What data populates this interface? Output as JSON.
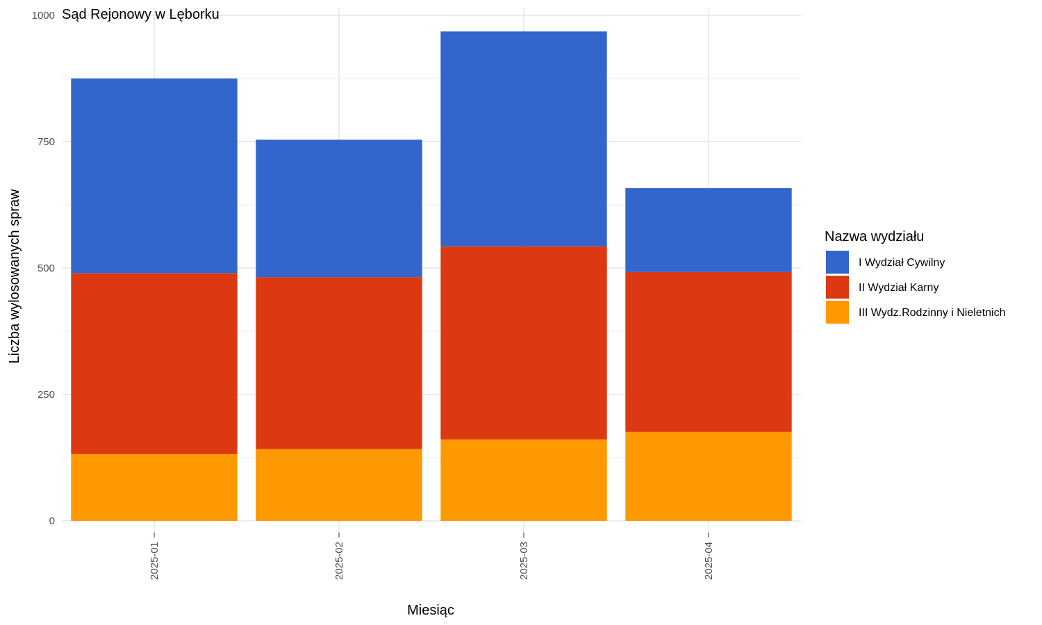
{
  "chart_data": {
    "type": "bar",
    "stacked": true,
    "title": "Sąd Rejonowy w Lęborku",
    "xlabel": "Miesiąc",
    "ylabel": "Liczba wylosowanych spraw",
    "categories": [
      "2025-01",
      "2025-02",
      "2025-03",
      "2025-04"
    ],
    "ylim": [
      0,
      1000
    ],
    "yticks": [
      0,
      250,
      500,
      750,
      1000
    ],
    "grid": true,
    "legend": {
      "title": "Nazwa wydziału",
      "position": "right"
    },
    "series": [
      {
        "name": "III Wydz.Rodzinny i Nieletnich",
        "color": "#FF9900",
        "values": [
          132,
          142,
          161,
          176
        ]
      },
      {
        "name": "II Wydział Karny",
        "color": "#DC3912",
        "values": [
          358,
          340,
          382,
          316
        ]
      },
      {
        "name": "I Wydział Cywilny",
        "color": "#3366CC",
        "values": [
          385,
          272,
          425,
          166
        ]
      }
    ],
    "legend_order": [
      "I Wydział Cywilny",
      "II Wydział Karny",
      "III Wydz.Rodzinny i Nieletnich"
    ]
  }
}
